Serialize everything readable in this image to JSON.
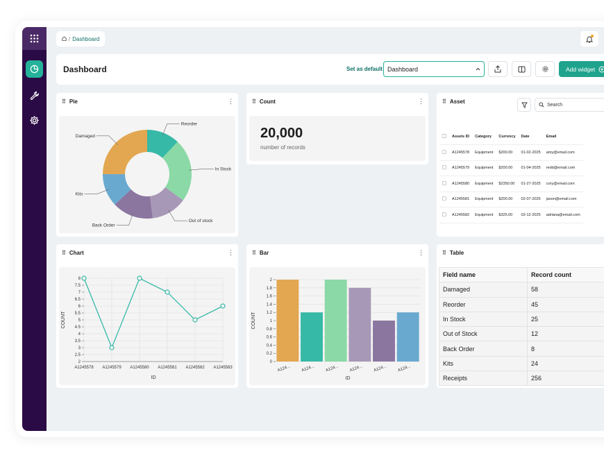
{
  "breadcrumb": {
    "current": "Dashboard"
  },
  "header": {
    "title": "Dashboard",
    "set_default_label": "Set as default",
    "select_value": "Dashboard",
    "add_widget_label": "Add widget"
  },
  "widgets": {
    "pie": {
      "title": "Pie"
    },
    "count": {
      "title": "Count",
      "value": "20,000",
      "subtitle": "number of records"
    },
    "asset": {
      "title": "Asset",
      "search_placeholder": "Search",
      "columns": [
        "Assets ID",
        "Category",
        "Currency",
        "Date",
        "Email"
      ],
      "rows": [
        [
          "A1245578",
          "Equipment",
          "$200.00",
          "01-02-2025",
          "amy@email.com"
        ],
        [
          "A1245579",
          "Equipment",
          "$200.00",
          "01-04-2025",
          "redd@email.com"
        ],
        [
          "A1245580",
          "Equipment",
          "$2350.00",
          "01-27-2025",
          "cory@email.com"
        ],
        [
          "A1245581",
          "Equipment",
          "$200.00",
          "02-07-2025",
          "jason@email.com"
        ],
        [
          "A1245582",
          "Equipment",
          "$325.00",
          "02-12-2025",
          "adriana@email.com"
        ]
      ]
    },
    "chart": {
      "title": "Chart"
    },
    "bar": {
      "title": "Bar"
    },
    "table": {
      "title": "Table",
      "columns": [
        "Field name",
        "Record count"
      ],
      "rows": [
        [
          "Damaged",
          "58"
        ],
        [
          "Reorder",
          "45"
        ],
        [
          "In Stock",
          "25"
        ],
        [
          "Out of Stock",
          "12"
        ],
        [
          "Back Order",
          "8"
        ],
        [
          "Kits",
          "24"
        ],
        [
          "Receipts",
          "256"
        ]
      ]
    }
  },
  "chart_data": [
    {
      "type": "pie",
      "donut": true,
      "slices": [
        {
          "label": "Reorder",
          "value": 12,
          "color": "#36b9a6"
        },
        {
          "label": "In Stock",
          "value": 23,
          "color": "#8bd9a6"
        },
        {
          "label": "Out of stock",
          "value": 13,
          "color": "#a898b7"
        },
        {
          "label": "Back Order",
          "value": 15,
          "color": "#8b76a0"
        },
        {
          "label": "Kits",
          "value": 12,
          "color": "#6aa9cf"
        },
        {
          "label": "Damaged",
          "value": 25,
          "color": "#e3a751"
        }
      ]
    },
    {
      "type": "line",
      "categories": [
        "A1245578",
        "A1245579",
        "A1245580",
        "A1245581",
        "A1245582",
        "A1245583"
      ],
      "values": [
        8,
        3,
        8,
        7,
        5,
        6
      ],
      "xlabel": "ID",
      "ylabel": "COUNT",
      "ylim": [
        2,
        8
      ],
      "yticks": [
        "2",
        "2.5",
        "3",
        "3.5",
        "4",
        "4.5",
        "5",
        "5.5",
        "6",
        "6.5",
        "7",
        "7.5",
        "8"
      ],
      "color": "#36b9a6",
      "grid": true
    },
    {
      "type": "bar",
      "categories": [
        "A124...",
        "A124...",
        "A124...",
        "A124...",
        "A124...",
        "A124..."
      ],
      "values": [
        2,
        1.2,
        2,
        1.8,
        1,
        1.2
      ],
      "colors": [
        "#e3a751",
        "#36b9a6",
        "#8bd9a6",
        "#a898b7",
        "#8b76a0",
        "#6aa9cf"
      ],
      "xlabel": "ID",
      "ylabel": "COUNT",
      "ylim": [
        0,
        2
      ],
      "yticks": [
        "0",
        "0.2",
        "0.4",
        "0.6",
        "0.8",
        "1",
        "1.2",
        "1.4",
        "1.6",
        "1.8",
        "2"
      ],
      "xtick_labels": [
        "A124...",
        "A124...",
        "A124...",
        "A124...",
        "A124...",
        "A124..."
      ]
    }
  ]
}
